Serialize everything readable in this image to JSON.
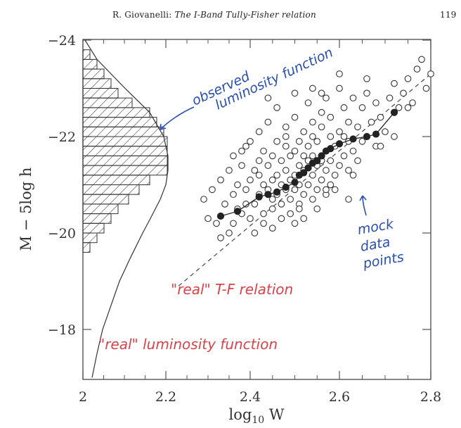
{
  "header": {
    "author": "R. Giovanelli:",
    "title": "The I-Band Tully-Fisher relation",
    "page": "119"
  },
  "annotations": {
    "observed": [
      "observed",
      "luminosity function"
    ],
    "mock": [
      "mock",
      "data",
      "points"
    ],
    "real_tf": "\"real\" T-F relation",
    "real_lf": "\"real\" luminosity function",
    "blue_color": "#2a4fb0",
    "red_color": "#d9434a"
  },
  "chart_data": {
    "type": "scatter",
    "xlabel": "log10 W",
    "ylabel": "M − 5log h",
    "xlim": [
      2.0,
      2.8
    ],
    "ylim": [
      -17.0,
      -24.0
    ],
    "xticks": [
      2.0,
      2.2,
      2.4,
      2.6,
      2.8
    ],
    "xtick_labels": [
      "2",
      "2.2",
      "2.4",
      "2.6",
      "2.8"
    ],
    "yticks": [
      -24,
      -22,
      -20,
      -18
    ],
    "ytick_labels": [
      "−24",
      "−22",
      "−20",
      "−18"
    ],
    "observed_luminosity_histogram": {
      "bin_width": 0.2,
      "bins": [
        {
          "M": -23.7,
          "count": 0.01
        },
        {
          "M": -23.5,
          "count": 0.02
        },
        {
          "M": -23.3,
          "count": 0.03
        },
        {
          "M": -23.1,
          "count": 0.04
        },
        {
          "M": -22.9,
          "count": 0.05
        },
        {
          "M": -22.7,
          "count": 0.07
        },
        {
          "M": -22.5,
          "count": 0.095
        },
        {
          "M": -22.3,
          "count": 0.105
        },
        {
          "M": -22.1,
          "count": 0.115
        },
        {
          "M": -21.9,
          "count": 0.12
        },
        {
          "M": -21.7,
          "count": 0.12
        },
        {
          "M": -21.5,
          "count": 0.12
        },
        {
          "M": -21.3,
          "count": 0.12
        },
        {
          "M": -21.1,
          "count": 0.095
        },
        {
          "M": -20.9,
          "count": 0.08
        },
        {
          "M": -20.7,
          "count": 0.065
        },
        {
          "M": -20.5,
          "count": 0.05
        },
        {
          "M": -20.3,
          "count": 0.04
        },
        {
          "M": -20.1,
          "count": 0.03
        },
        {
          "M": -19.9,
          "count": 0.02
        },
        {
          "M": -19.7,
          "count": 0.01
        }
      ]
    },
    "real_luminosity_function": {
      "M": [
        -24.0,
        -23.6,
        -23.0,
        -22.5,
        -22.0,
        -21.6,
        -21.3,
        -21.0,
        -20.7,
        -20.3,
        -20.0,
        -19.5,
        -19.0,
        -18.5,
        -18.0,
        -17.5,
        -17.0
      ],
      "value": [
        0.003,
        0.02,
        0.06,
        0.095,
        0.115,
        0.121,
        0.121,
        0.118,
        0.11,
        0.096,
        0.085,
        0.068,
        0.052,
        0.04,
        0.028,
        0.02,
        0.013
      ]
    },
    "real_tf_relation": {
      "x": [
        2.23,
        2.8
      ],
      "y": [
        -18.9,
        -23.3
      ]
    },
    "binned_means": {
      "x": [
        2.33,
        2.37,
        2.42,
        2.44,
        2.46,
        2.48,
        2.5,
        2.51,
        2.52,
        2.53,
        2.54,
        2.55,
        2.56,
        2.57,
        2.58,
        2.6,
        2.63,
        2.66,
        2.68,
        2.72
      ],
      "y": [
        -20.35,
        -20.45,
        -20.75,
        -20.8,
        -20.85,
        -20.95,
        -21.05,
        -21.2,
        -21.25,
        -21.35,
        -21.45,
        -21.5,
        -21.6,
        -21.7,
        -21.75,
        -21.85,
        -21.95,
        -22.0,
        -22.05,
        -22.5
      ]
    },
    "mock_data_points": {
      "x": [
        2.29,
        2.3,
        2.31,
        2.32,
        2.33,
        2.34,
        2.35,
        2.35,
        2.36,
        2.36,
        2.37,
        2.37,
        2.38,
        2.38,
        2.39,
        2.39,
        2.4,
        2.4,
        2.4,
        2.41,
        2.41,
        2.41,
        2.42,
        2.42,
        2.42,
        2.43,
        2.43,
        2.43,
        2.43,
        2.44,
        2.44,
        2.44,
        2.45,
        2.45,
        2.45,
        2.45,
        2.46,
        2.46,
        2.46,
        2.46,
        2.47,
        2.47,
        2.47,
        2.47,
        2.48,
        2.48,
        2.48,
        2.48,
        2.49,
        2.49,
        2.49,
        2.49,
        2.5,
        2.5,
        2.5,
        2.5,
        2.5,
        2.51,
        2.51,
        2.51,
        2.51,
        2.52,
        2.52,
        2.52,
        2.52,
        2.52,
        2.53,
        2.53,
        2.53,
        2.53,
        2.54,
        2.54,
        2.54,
        2.54,
        2.54,
        2.55,
        2.55,
        2.55,
        2.55,
        2.56,
        2.56,
        2.56,
        2.56,
        2.57,
        2.57,
        2.57,
        2.57,
        2.58,
        2.58,
        2.58,
        2.58,
        2.59,
        2.59,
        2.59,
        2.6,
        2.6,
        2.6,
        2.61,
        2.61,
        2.61,
        2.62,
        2.62,
        2.62,
        2.63,
        2.63,
        2.64,
        2.64,
        2.65,
        2.65,
        2.66,
        2.66,
        2.67,
        2.68,
        2.68,
        2.69,
        2.7,
        2.71,
        2.72,
        2.73,
        2.74,
        2.75,
        2.76,
        2.77,
        2.78,
        2.79,
        2.8,
        2.33,
        2.36,
        2.39,
        2.42,
        2.45,
        2.48,
        2.51,
        2.54,
        2.57,
        2.6,
        2.63,
        2.66,
        2.69,
        2.72,
        2.75,
        2.38,
        2.44,
        2.5,
        2.56,
        2.62
      ],
      "y": [
        -20.7,
        -20.3,
        -20.9,
        -20.2,
        -21.1,
        -20.6,
        -21.3,
        -20.0,
        -20.8,
        -21.6,
        -20.5,
        -21.0,
        -20.4,
        -21.4,
        -20.9,
        -21.8,
        -20.3,
        -21.1,
        -21.9,
        -20.6,
        -21.3,
        -20.0,
        -20.8,
        -21.5,
        -22.1,
        -20.4,
        -21.0,
        -21.7,
        -20.2,
        -20.9,
        -21.4,
        -22.3,
        -20.5,
        -21.1,
        -21.6,
        -20.1,
        -20.8,
        -21.2,
        -21.9,
        -22.6,
        -20.6,
        -21.0,
        -21.5,
        -20.3,
        -20.9,
        -21.3,
        -21.8,
        -22.2,
        -20.7,
        -21.1,
        -21.6,
        -20.4,
        -20.9,
        -21.2,
        -21.7,
        -22.4,
        -20.2,
        -21.0,
        -21.4,
        -21.9,
        -20.6,
        -20.8,
        -21.3,
        -21.6,
        -22.1,
        -20.3,
        -21.0,
        -21.5,
        -21.8,
        -22.7,
        -20.7,
        -21.2,
        -21.6,
        -22.0,
        -22.3,
        -20.9,
        -21.4,
        -21.9,
        -20.5,
        -21.1,
        -21.5,
        -22.2,
        -22.5,
        -20.8,
        -21.3,
        -21.7,
        -22.8,
        -21.0,
        -21.5,
        -22.0,
        -22.4,
        -21.2,
        -21.8,
        -20.9,
        -21.4,
        -22.1,
        -23.0,
        -21.6,
        -22.0,
        -22.6,
        -21.3,
        -21.9,
        -22.3,
        -21.7,
        -22.8,
        -21.5,
        -22.2,
        -21.9,
        -22.6,
        -22.0,
        -22.9,
        -22.3,
        -21.8,
        -22.7,
        -22.4,
        -22.1,
        -22.8,
        -23.1,
        -22.6,
        -22.9,
        -23.2,
        -22.7,
        -23.4,
        -23.6,
        -23.0,
        -23.3,
        -19.9,
        -20.2,
        -20.6,
        -21.2,
        -20.7,
        -22.0,
        -20.5,
        -23.0,
        -20.9,
        -23.3,
        -21.2,
        -23.2,
        -21.8,
        -22.0,
        -22.6,
        -21.7,
        -22.8,
        -22.9,
        -22.9,
        -20.7
      ]
    }
  }
}
